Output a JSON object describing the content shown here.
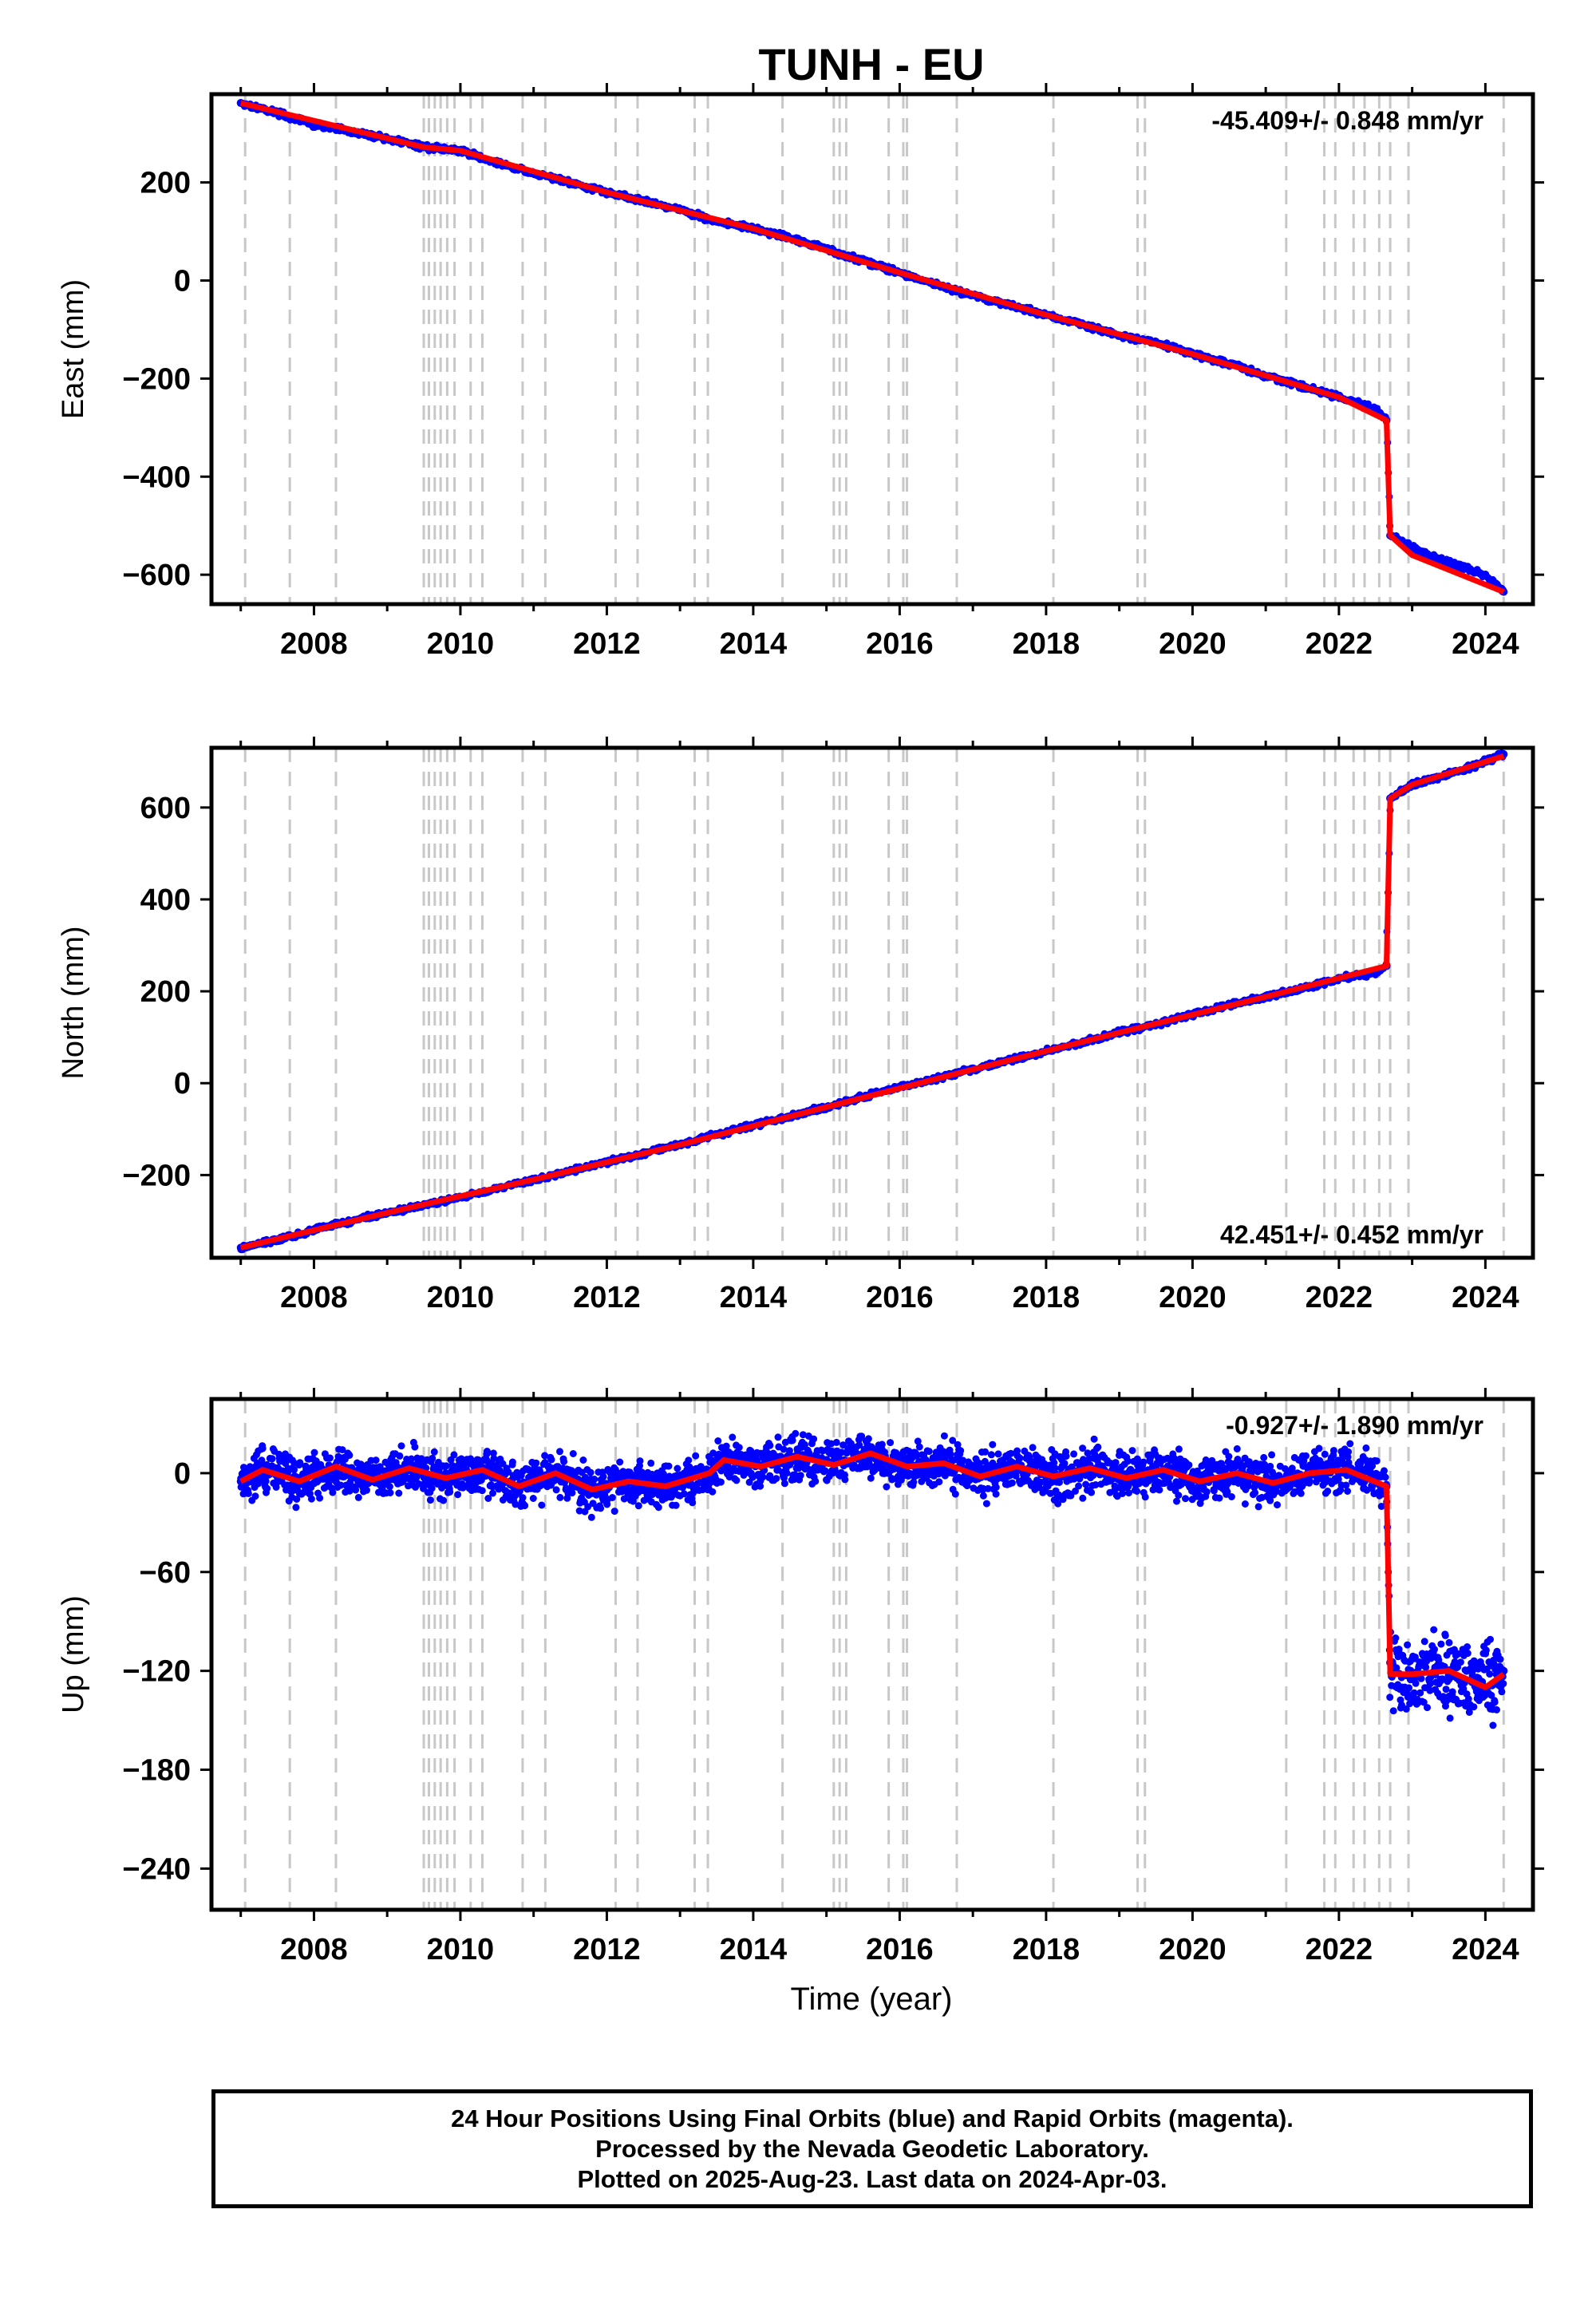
{
  "title": "TUNH - EU",
  "xlabel": "Time (year)",
  "colors": {
    "data": "#0000ff",
    "model": "#ff0000",
    "event_line": "#c8c8c8",
    "frame": "#000000"
  },
  "event_years": [
    2007.06,
    2007.67,
    2008.3,
    2009.5,
    2009.57,
    2009.65,
    2009.73,
    2009.82,
    2009.92,
    2010.14,
    2010.3,
    2010.85,
    2011.16,
    2012.12,
    2012.42,
    2013.2,
    2013.38,
    2014.4,
    2015.1,
    2015.18,
    2015.27,
    2015.85,
    2016.05,
    2016.1,
    2016.78,
    2018.1,
    2019.25,
    2019.35,
    2021.28,
    2021.8,
    2021.95,
    2022.2,
    2022.35,
    2022.55,
    2022.7,
    2022.95,
    2024.25
  ],
  "chart_data": [
    {
      "type": "scatter",
      "ylabel": "East (mm)",
      "rate_label": "-45.409+/- 0.848 mm/yr",
      "xlim": [
        2006.6,
        2024.65
      ],
      "ylim": [
        -660,
        380
      ],
      "x_ticks": [
        2008,
        2010,
        2012,
        2014,
        2016,
        2018,
        2020,
        2022,
        2024
      ],
      "x_tick_labels": [
        "2008",
        "2010",
        "2012",
        "2014",
        "2016",
        "2018",
        "2020",
        "2022",
        "2024"
      ],
      "y_ticks": [
        200,
        0,
        -200,
        -400,
        -600
      ],
      "y_tick_labels": [
        "200",
        "0",
        "−200",
        "−400",
        "−600"
      ],
      "series": [
        {
          "role": "positions",
          "x": [
            2007.0,
            2007.5,
            2008.0,
            2008.5,
            2009.0,
            2009.5,
            2010.0,
            2010.5,
            2011.0,
            2011.5,
            2012.0,
            2012.5,
            2013.0,
            2013.5,
            2014.0,
            2014.5,
            2015.0,
            2015.5,
            2016.0,
            2016.5,
            2017.0,
            2017.5,
            2018.0,
            2018.5,
            2019.0,
            2019.5,
            2020.0,
            2020.5,
            2021.0,
            2021.5,
            2022.0,
            2022.5,
            2022.65,
            2022.7,
            2023.0,
            2023.5,
            2024.0,
            2024.25
          ],
          "y": [
            362,
            342,
            318,
            304,
            290,
            272,
            265,
            240,
            218,
            200,
            180,
            162,
            145,
            120,
            106,
            86,
            64,
            40,
            16,
            -8,
            -30,
            -50,
            -70,
            -90,
            -112,
            -126,
            -150,
            -170,
            -195,
            -215,
            -238,
            -262,
            -285,
            -520,
            -545,
            -575,
            -600,
            -635
          ]
        },
        {
          "role": "model",
          "x": [
            2007.0,
            2009.5,
            2010.0,
            2012.0,
            2014.0,
            2016.0,
            2018.0,
            2020.0,
            2022.0,
            2022.65,
            2022.7,
            2023.0,
            2024.25
          ],
          "y": [
            362,
            272,
            265,
            180,
            106,
            16,
            -70,
            -150,
            -238,
            -285,
            -520,
            -560,
            -635
          ]
        }
      ]
    },
    {
      "type": "scatter",
      "ylabel": "North (mm)",
      "rate_label": "42.451+/- 0.452 mm/yr",
      "xlim": [
        2006.6,
        2024.65
      ],
      "ylim": [
        -380,
        730
      ],
      "x_ticks": [
        2008,
        2010,
        2012,
        2014,
        2016,
        2018,
        2020,
        2022,
        2024
      ],
      "x_tick_labels": [
        "2008",
        "2010",
        "2012",
        "2014",
        "2016",
        "2018",
        "2020",
        "2022",
        "2024"
      ],
      "y_ticks": [
        600,
        400,
        200,
        0,
        -200
      ],
      "y_tick_labels": [
        "600",
        "400",
        "200",
        "0",
        "−200"
      ],
      "series": [
        {
          "role": "positions",
          "x": [
            2007.0,
            2007.5,
            2008.0,
            2008.5,
            2009.0,
            2009.5,
            2010.0,
            2010.5,
            2011.0,
            2011.5,
            2012.0,
            2012.5,
            2013.0,
            2013.5,
            2014.0,
            2014.5,
            2015.0,
            2015.5,
            2016.0,
            2016.5,
            2017.0,
            2017.5,
            2018.0,
            2018.5,
            2019.0,
            2019.5,
            2020.0,
            2020.5,
            2021.0,
            2021.5,
            2022.0,
            2022.5,
            2022.65,
            2022.7,
            2023.0,
            2023.5,
            2024.0,
            2024.25
          ],
          "y": [
            -358,
            -340,
            -320,
            -300,
            -282,
            -266,
            -248,
            -230,
            -210,
            -192,
            -172,
            -152,
            -134,
            -112,
            -92,
            -72,
            -52,
            -30,
            -8,
            10,
            30,
            50,
            70,
            90,
            110,
            128,
            150,
            170,
            188,
            206,
            228,
            240,
            255,
            620,
            650,
            672,
            700,
            716
          ]
        },
        {
          "role": "model",
          "x": [
            2007.0,
            2009.0,
            2011.0,
            2013.0,
            2015.0,
            2017.0,
            2019.0,
            2021.0,
            2022.65,
            2022.7,
            2023.0,
            2024.25
          ],
          "y": [
            -358,
            -282,
            -210,
            -134,
            -52,
            30,
            110,
            188,
            255,
            620,
            650,
            712
          ]
        }
      ]
    },
    {
      "type": "scatter",
      "ylabel": "Up (mm)",
      "rate_label": "-0.927+/- 1.890 mm/yr",
      "xlim": [
        2006.6,
        2024.65
      ],
      "ylim": [
        -265,
        45
      ],
      "x_ticks": [
        2008,
        2010,
        2012,
        2014,
        2016,
        2018,
        2020,
        2022,
        2024
      ],
      "x_tick_labels": [
        "2008",
        "2010",
        "2012",
        "2014",
        "2016",
        "2018",
        "2020",
        "2022",
        "2024"
      ],
      "y_ticks": [
        0,
        -60,
        -120,
        -180,
        -240
      ],
      "y_tick_labels": [
        "0",
        "−60",
        "−120",
        "−180",
        "−240"
      ],
      "series": [
        {
          "role": "positions",
          "x": [
            2007.0,
            2007.5,
            2008.0,
            2008.5,
            2009.0,
            2009.5,
            2010.0,
            2010.5,
            2011.0,
            2011.5,
            2012.0,
            2012.5,
            2013.0,
            2013.5,
            2014.0,
            2014.5,
            2015.0,
            2015.5,
            2016.0,
            2016.5,
            2017.0,
            2017.5,
            2018.0,
            2018.5,
            2019.0,
            2019.5,
            2020.0,
            2020.5,
            2021.0,
            2021.5,
            2022.0,
            2022.5,
            2022.65,
            2022.7,
            2023.0,
            2023.5,
            2024.0,
            2024.25
          ],
          "y": [
            -5,
            -2,
            -6,
            3,
            -3,
            2,
            -2,
            -8,
            -3,
            -2,
            -10,
            -6,
            -8,
            8,
            5,
            10,
            8,
            12,
            5,
            0,
            2,
            3,
            -2,
            2,
            0,
            2,
            -1,
            -3,
            -5,
            -3,
            0,
            -2,
            -8,
            -115,
            -125,
            -125,
            -130,
            -120
          ]
        },
        {
          "role": "model",
          "x": [
            2007.0,
            2007.3,
            2007.8,
            2008.3,
            2008.8,
            2009.3,
            2009.8,
            2010.3,
            2010.8,
            2011.3,
            2011.8,
            2012.3,
            2012.8,
            2013.4,
            2013.6,
            2014.1,
            2014.6,
            2015.1,
            2015.6,
            2016.1,
            2016.6,
            2017.1,
            2017.6,
            2018.1,
            2018.6,
            2019.1,
            2019.6,
            2020.1,
            2020.6,
            2021.1,
            2021.6,
            2022.1,
            2022.65,
            2022.7,
            2023.0,
            2023.5,
            2024.0,
            2024.25
          ],
          "y": [
            -5,
            2,
            -5,
            4,
            -4,
            3,
            -3,
            2,
            -8,
            0,
            -10,
            -5,
            -8,
            0,
            8,
            4,
            10,
            5,
            12,
            4,
            6,
            -2,
            4,
            -2,
            3,
            -3,
            2,
            -5,
            0,
            -6,
            0,
            2,
            -8,
            -122,
            -122,
            -120,
            -130,
            -122
          ]
        }
      ]
    }
  ],
  "footer": {
    "line1": "24 Hour Positions Using Final Orbits (blue) and Rapid Orbits (magenta).",
    "line2": "Processed by the Nevada Geodetic Laboratory.",
    "line3": "Plotted on 2025-Aug-23. Last data on 2024-Apr-03."
  }
}
